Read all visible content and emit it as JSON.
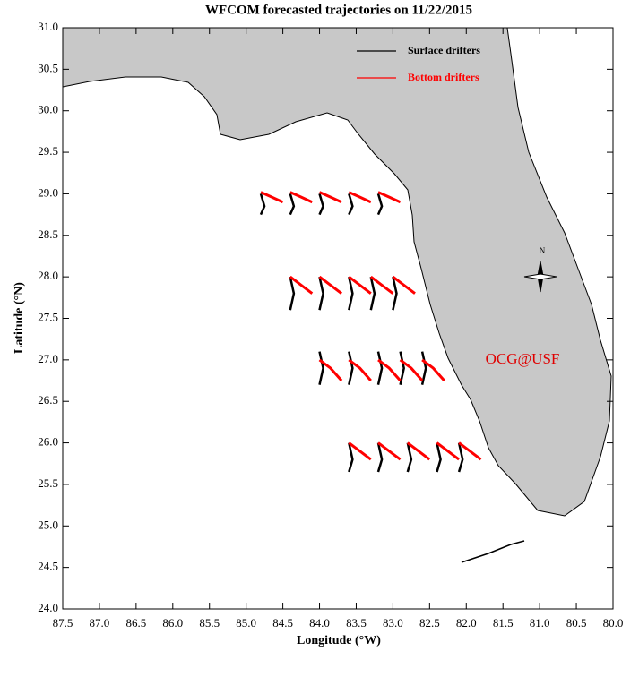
{
  "chart_data": {
    "type": "trajectory",
    "title": "WFCOM forecasted trajectories on 11/22/2015",
    "x_label": "Longitude (°W)",
    "y_label": "Latitude (°N)",
    "annotation": "OCG@USF",
    "legend": "upper right",
    "xlim": [
      87.5,
      80.0
    ],
    "ylim": [
      24.0,
      31.0
    ],
    "xticks": [
      87.5,
      {
        "value": 87,
        "label": "87.0"
      },
      86.5,
      {
        "value": 86,
        "label": "86.0"
      },
      85.5,
      {
        "value": 85,
        "label": "85.0"
      },
      84.5,
      {
        "value": 84,
        "label": "84.0"
      },
      83.5,
      {
        "value": 83,
        "label": "83.0"
      },
      82.5,
      {
        "value": 82,
        "label": "82.0"
      },
      81.5,
      {
        "value": 81,
        "label": "81.0"
      },
      80.5,
      {
        "value": 80,
        "label": "80.0"
      }
    ],
    "yticks": [
      {
        "value": 24,
        "label": "24.0"
      },
      24.5,
      {
        "value": 25,
        "label": "25.0"
      },
      25.5,
      {
        "value": 26,
        "label": "26.0"
      },
      26.5,
      {
        "value": 27,
        "label": "27.0"
      },
      27.5,
      {
        "value": 28,
        "label": "28.0"
      },
      28.5,
      {
        "value": 29,
        "label": "29.0"
      },
      29.5,
      {
        "value": 30,
        "label": "30.0"
      },
      30.5,
      {
        "value": 31,
        "label": "31.0"
      }
    ],
    "series": [
      {
        "name": "Surface drifters",
        "color": "#000000",
        "x": [
          84.8,
          84.75,
          84.8,
          null,
          84.4,
          84.35,
          84.4,
          null,
          84.0,
          83.95,
          84.0,
          null,
          83.6,
          83.55,
          83.6,
          null,
          83.2,
          83.15,
          83.2,
          null,
          84.4,
          84.35,
          84.4,
          null,
          84.0,
          83.95,
          84.0,
          null,
          83.6,
          83.55,
          83.6,
          null,
          83.3,
          83.25,
          83.3,
          null,
          83.0,
          82.95,
          83.0,
          null,
          84.0,
          83.95,
          84.0,
          null,
          83.6,
          83.55,
          83.6,
          null,
          83.2,
          83.15,
          83.2,
          null,
          82.9,
          82.85,
          82.9,
          null,
          82.6,
          82.55,
          82.6,
          null,
          83.6,
          83.55,
          83.6,
          null,
          83.2,
          83.15,
          83.2,
          null,
          82.8,
          82.75,
          82.8,
          null,
          82.4,
          82.35,
          82.4,
          null,
          82.1,
          82.05,
          82.1
        ],
        "values": [
          29.0,
          28.85,
          28.75,
          null,
          29.0,
          28.85,
          28.75,
          null,
          29.0,
          28.85,
          28.75,
          null,
          29.0,
          28.85,
          28.75,
          null,
          29.0,
          28.85,
          28.75,
          null,
          28.0,
          27.8,
          27.6,
          null,
          28.0,
          27.8,
          27.6,
          null,
          28.0,
          27.8,
          27.6,
          null,
          28.0,
          27.8,
          27.6,
          null,
          28.0,
          27.8,
          27.6,
          null,
          27.1,
          26.9,
          26.7,
          null,
          27.1,
          26.9,
          26.7,
          null,
          27.1,
          26.9,
          26.7,
          null,
          27.1,
          26.9,
          26.7,
          null,
          27.1,
          26.9,
          26.7,
          null,
          26.0,
          25.8,
          25.65,
          null,
          26.0,
          25.8,
          25.65,
          null,
          26.0,
          25.8,
          25.65,
          null,
          26.0,
          25.8,
          25.65,
          null,
          26.0,
          25.8,
          25.65
        ]
      },
      {
        "name": "Bottom drifters",
        "color": "#ff0000",
        "x": [
          84.8,
          84.65,
          84.5,
          null,
          84.4,
          84.25,
          84.1,
          null,
          84.0,
          83.85,
          83.7,
          null,
          83.6,
          83.45,
          83.3,
          null,
          83.2,
          83.05,
          82.9,
          null,
          84.4,
          84.25,
          84.1,
          null,
          84.0,
          83.85,
          83.7,
          null,
          83.6,
          83.45,
          83.3,
          null,
          83.3,
          83.15,
          83.0,
          null,
          83.0,
          82.85,
          82.7,
          null,
          84.0,
          83.85,
          83.7,
          null,
          83.6,
          83.45,
          83.3,
          null,
          83.2,
          83.05,
          82.9,
          null,
          82.9,
          82.75,
          82.6,
          null,
          82.6,
          82.45,
          82.3,
          null,
          83.6,
          83.45,
          83.3,
          null,
          83.2,
          83.05,
          82.9,
          null,
          82.8,
          82.65,
          82.5,
          null,
          82.4,
          82.25,
          82.1,
          null,
          82.1,
          81.95,
          81.8
        ],
        "values": [
          29.02,
          28.96,
          28.9,
          null,
          29.02,
          28.96,
          28.9,
          null,
          29.02,
          28.96,
          28.9,
          null,
          29.02,
          28.96,
          28.9,
          null,
          29.02,
          28.96,
          28.9,
          null,
          28.0,
          27.9,
          27.8,
          null,
          28.0,
          27.9,
          27.8,
          null,
          28.0,
          27.9,
          27.8,
          null,
          28.0,
          27.9,
          27.8,
          null,
          28.0,
          27.9,
          27.8,
          null,
          27.0,
          26.9,
          26.75,
          null,
          27.0,
          26.9,
          26.75,
          null,
          27.0,
          26.9,
          26.75,
          null,
          27.0,
          26.9,
          26.75,
          null,
          27.0,
          26.9,
          26.75,
          null,
          26.0,
          25.9,
          25.8,
          null,
          26.0,
          25.9,
          25.8,
          null,
          26.0,
          25.9,
          25.8,
          null,
          26.0,
          25.9,
          25.8,
          null,
          26.0,
          25.9,
          25.8
        ]
      }
    ]
  }
}
